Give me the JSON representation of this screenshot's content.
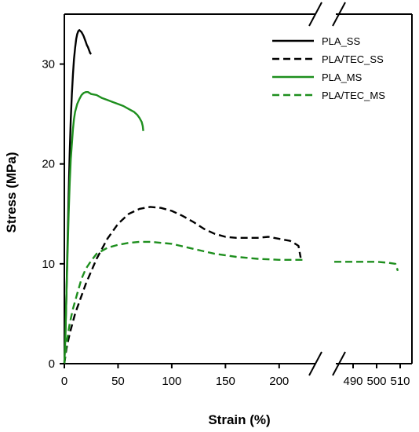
{
  "chart_data": {
    "type": "line",
    "title": "",
    "xlabel": "Strain (%)",
    "ylabel": "Stress (MPa)",
    "xlim": [
      0,
      225
    ],
    "xlim_after_break": [
      480,
      515
    ],
    "ylim": [
      0,
      35
    ],
    "x_ticks": [
      0,
      50,
      100,
      150,
      200
    ],
    "x_ticks_after_break": [
      490,
      500,
      510
    ],
    "y_ticks": [
      0,
      10,
      20,
      30
    ],
    "grid": false,
    "legend_position": "top-right",
    "series": [
      {
        "name": "PLA_SS",
        "color": "#000000",
        "dash": "solid",
        "x": [
          0,
          1,
          2,
          3,
          4,
          5,
          6,
          7,
          8,
          9,
          10,
          11,
          12,
          13,
          14,
          15,
          16,
          17,
          18,
          19,
          20,
          21,
          22,
          23,
          24,
          25
        ],
        "y": [
          0,
          3,
          7,
          12,
          17,
          21,
          24.5,
          27,
          29,
          30.5,
          31.6,
          32.5,
          33,
          33.3,
          33.4,
          33.3,
          33.2,
          33,
          32.8,
          32.5,
          32.2,
          31.9,
          31.7,
          31.4,
          31.1,
          31
        ]
      },
      {
        "name": "PLA/TEC_SS",
        "color": "#000000",
        "dash": "dashed",
        "x": [
          0,
          2,
          5,
          10,
          15,
          20,
          30,
          40,
          50,
          60,
          70,
          80,
          90,
          100,
          110,
          120,
          130,
          140,
          150,
          160,
          170,
          180,
          190,
          200,
          210,
          215,
          218,
          220
        ],
        "y": [
          0,
          1.5,
          3,
          5,
          6.5,
          8,
          10.5,
          12.5,
          14,
          15,
          15.5,
          15.7,
          15.6,
          15.3,
          14.8,
          14.2,
          13.5,
          13,
          12.7,
          12.6,
          12.6,
          12.6,
          12.7,
          12.5,
          12.3,
          12,
          11.8,
          10.6
        ]
      },
      {
        "name": "PLA_MS",
        "color": "#1e8f1e",
        "dash": "solid",
        "x": [
          0,
          1,
          2,
          3,
          4,
          5,
          6,
          7,
          8,
          9,
          10,
          12,
          14,
          16,
          18,
          20,
          22,
          25,
          30,
          35,
          40,
          45,
          50,
          55,
          60,
          65,
          68,
          70,
          72,
          73,
          73.5
        ],
        "y": [
          0,
          3,
          7,
          11,
          15,
          18,
          20.5,
          22,
          23.5,
          24.5,
          25.2,
          26,
          26.5,
          26.9,
          27.1,
          27.2,
          27.2,
          27,
          26.9,
          26.6,
          26.4,
          26.2,
          26,
          25.8,
          25.5,
          25.2,
          24.9,
          24.6,
          24.2,
          23.8,
          23.3
        ]
      },
      {
        "name": "PLA/TEC_MS",
        "color": "#1e8f1e",
        "dash": "dashed",
        "x": [
          0,
          2,
          5,
          8,
          12,
          16,
          20,
          25,
          30,
          40,
          50,
          60,
          70,
          80,
          100,
          120,
          140,
          160,
          180,
          200,
          220,
          225
        ],
        "y": [
          0,
          2,
          4,
          5.5,
          7,
          8.5,
          9.5,
          10.3,
          11,
          11.6,
          11.9,
          12.1,
          12.2,
          12.2,
          12,
          11.5,
          11,
          10.7,
          10.5,
          10.4,
          10.4,
          10.4
        ],
        "x_after_break": [
          482,
          490,
          500,
          505,
          508,
          509
        ],
        "y_after_break": [
          10.2,
          10.2,
          10.2,
          10.1,
          10.0,
          9.3
        ]
      }
    ]
  }
}
